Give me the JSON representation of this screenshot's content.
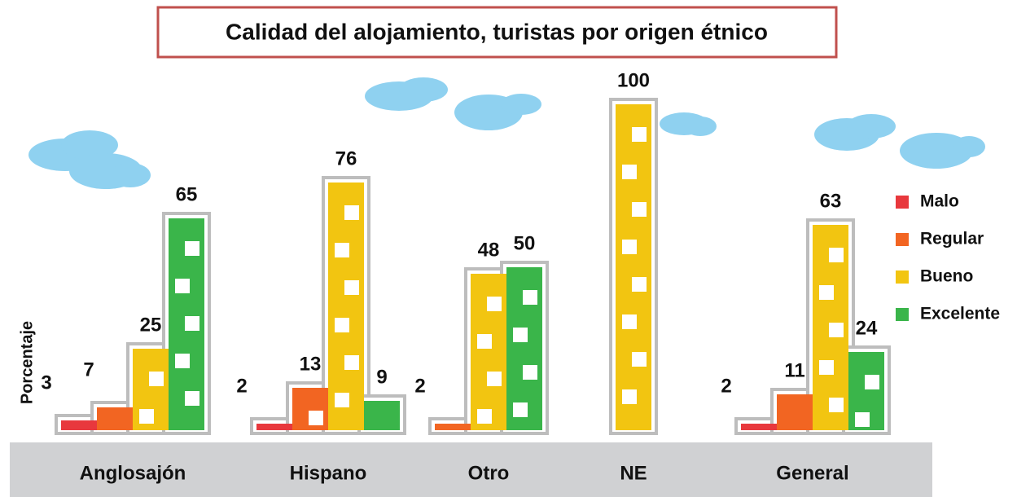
{
  "chart_data": {
    "type": "bar",
    "title": "Calidad del alojamiento, turistas por origen étnico",
    "y_label": "Porcentaje",
    "categories": [
      "Anglosajón",
      "Hispano",
      "Otro",
      "NE",
      "General"
    ],
    "series": [
      {
        "name": "Malo",
        "color": "#e8383d",
        "values": [
          3,
          2,
          null,
          null,
          2
        ]
      },
      {
        "name": "Regular",
        "color": "#f26522",
        "values": [
          7,
          13,
          2,
          null,
          11
        ]
      },
      {
        "name": "Bueno",
        "color": "#f2c511",
        "values": [
          25,
          76,
          48,
          100,
          63
        ]
      },
      {
        "name": "Excelente",
        "color": "#3ab54a",
        "values": [
          65,
          9,
          50,
          null,
          24
        ]
      }
    ],
    "legend": "right"
  }
}
